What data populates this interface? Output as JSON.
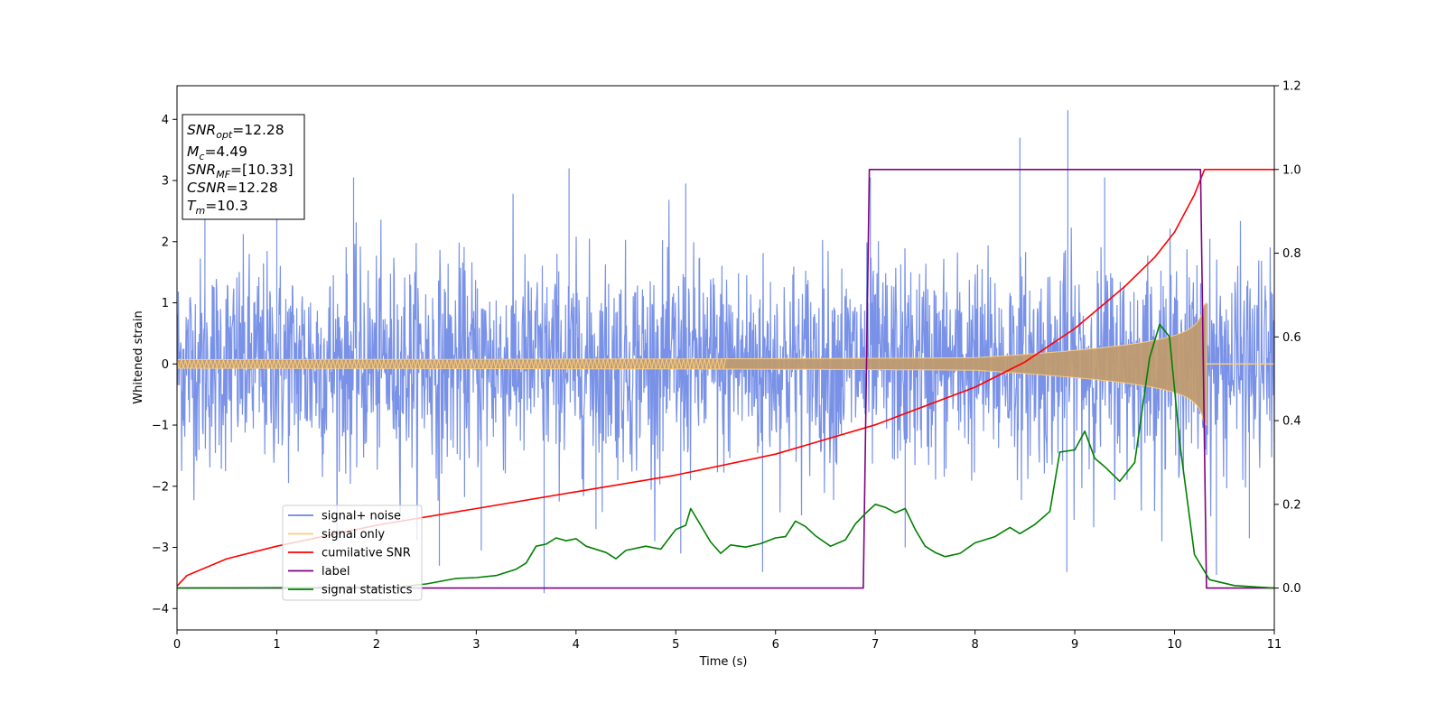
{
  "chart_data": {
    "type": "line",
    "xlabel": "Time (s)",
    "ylabel": "Whitened strain",
    "xlim": [
      0,
      11
    ],
    "ylim": [
      -4.35,
      4.55
    ],
    "y2lim": [
      -0.1,
      1.2
    ],
    "xticks": [
      "0",
      "1",
      "2",
      "3",
      "4",
      "5",
      "6",
      "7",
      "8",
      "9",
      "10",
      "11"
    ],
    "yticks": [
      "−4",
      "−3",
      "−2",
      "−1",
      "0",
      "1",
      "2",
      "3",
      "4"
    ],
    "y2ticks": [
      "0.0",
      "0.2",
      "0.4",
      "0.6",
      "0.8",
      "1.0",
      "1.2"
    ],
    "legend_position": "lower-left",
    "grid": false,
    "textbox": {
      "lines": [
        {
          "sym": "SNR",
          "sub": "opt",
          "rest": "=12.28"
        },
        {
          "sym": "M",
          "sub": "c",
          "rest": "=4.49"
        },
        {
          "sym": "SNR",
          "sub": "MF",
          "rest": "=[10.33]"
        },
        {
          "sym": "CSNR",
          "sub": "",
          "rest": "=12.28"
        },
        {
          "sym": "T",
          "sub": "m",
          "rest": "=10.3"
        }
      ]
    },
    "series": [
      {
        "name": "signal+ noise",
        "axis": "left",
        "color": "#6a86e6",
        "style": "dense noise",
        "envelope_std": 0.85,
        "spikes": [
          [
            0.28,
            3.1
          ],
          [
            1.0,
            2.6
          ],
          [
            1.77,
            3.05
          ],
          [
            2.63,
            -3.3
          ],
          [
            3.05,
            -3.05
          ],
          [
            3.68,
            -3.75
          ],
          [
            3.93,
            3.2
          ],
          [
            4.2,
            -2.7
          ],
          [
            5.05,
            -3.1
          ],
          [
            5.1,
            2.95
          ],
          [
            5.87,
            -3.4
          ],
          [
            6.95,
            3.05
          ],
          [
            7.3,
            -3.0
          ],
          [
            8.45,
            3.7
          ],
          [
            8.93,
            4.15
          ],
          [
            8.92,
            -3.4
          ],
          [
            9.3,
            3.05
          ],
          [
            10.42,
            -3.45
          ],
          [
            10.75,
            -2.85
          ]
        ]
      },
      {
        "name": "signal only",
        "axis": "left",
        "color": "#f7cb7f",
        "style": "chirp",
        "amplitude_start": 0.07,
        "amplitude_end": 1.0,
        "merger_time": 10.32
      },
      {
        "name": "cumilative SNR",
        "axis": "right",
        "color": "#ff0000",
        "points": [
          [
            0,
            0.005
          ],
          [
            0.1,
            0.03
          ],
          [
            0.5,
            0.07
          ],
          [
            1,
            0.1
          ],
          [
            2,
            0.15
          ],
          [
            3,
            0.19
          ],
          [
            4,
            0.23
          ],
          [
            5,
            0.27
          ],
          [
            6,
            0.32
          ],
          [
            7,
            0.39
          ],
          [
            8,
            0.48
          ],
          [
            8.5,
            0.54
          ],
          [
            9,
            0.62
          ],
          [
            9.5,
            0.72
          ],
          [
            9.8,
            0.79
          ],
          [
            10,
            0.85
          ],
          [
            10.2,
            0.94
          ],
          [
            10.3,
            1.0
          ],
          [
            11,
            1.0
          ]
        ]
      },
      {
        "name": "label",
        "axis": "right",
        "color": "#800080",
        "points": [
          [
            0,
            0
          ],
          [
            6.88,
            0
          ],
          [
            6.94,
            1.0
          ],
          [
            10.26,
            1.0
          ],
          [
            10.32,
            0
          ],
          [
            11,
            0
          ]
        ]
      },
      {
        "name": "signal statistics",
        "axis": "right",
        "color": "#008000",
        "points": [
          [
            0,
            0
          ],
          [
            2.2,
            0.002
          ],
          [
            2.5,
            0.01
          ],
          [
            2.8,
            0.023
          ],
          [
            3.0,
            0.025
          ],
          [
            3.2,
            0.03
          ],
          [
            3.4,
            0.045
          ],
          [
            3.5,
            0.06
          ],
          [
            3.6,
            0.1
          ],
          [
            3.7,
            0.105
          ],
          [
            3.8,
            0.12
          ],
          [
            3.9,
            0.113
          ],
          [
            4.0,
            0.118
          ],
          [
            4.1,
            0.1
          ],
          [
            4.3,
            0.085
          ],
          [
            4.4,
            0.07
          ],
          [
            4.5,
            0.09
          ],
          [
            4.7,
            0.1
          ],
          [
            4.85,
            0.093
          ],
          [
            5.0,
            0.14
          ],
          [
            5.1,
            0.15
          ],
          [
            5.15,
            0.19
          ],
          [
            5.25,
            0.15
          ],
          [
            5.35,
            0.11
          ],
          [
            5.45,
            0.083
          ],
          [
            5.55,
            0.103
          ],
          [
            5.7,
            0.098
          ],
          [
            5.85,
            0.106
          ],
          [
            6.0,
            0.12
          ],
          [
            6.1,
            0.123
          ],
          [
            6.2,
            0.16
          ],
          [
            6.3,
            0.147
          ],
          [
            6.4,
            0.125
          ],
          [
            6.55,
            0.1
          ],
          [
            6.7,
            0.115
          ],
          [
            6.8,
            0.153
          ],
          [
            6.9,
            0.178
          ],
          [
            7.0,
            0.2
          ],
          [
            7.1,
            0.193
          ],
          [
            7.2,
            0.18
          ],
          [
            7.3,
            0.19
          ],
          [
            7.4,
            0.14
          ],
          [
            7.5,
            0.1
          ],
          [
            7.6,
            0.085
          ],
          [
            7.7,
            0.075
          ],
          [
            7.85,
            0.083
          ],
          [
            8.0,
            0.108
          ],
          [
            8.2,
            0.123
          ],
          [
            8.35,
            0.145
          ],
          [
            8.45,
            0.13
          ],
          [
            8.6,
            0.152
          ],
          [
            8.75,
            0.183
          ],
          [
            8.85,
            0.325
          ],
          [
            9.0,
            0.33
          ],
          [
            9.1,
            0.375
          ],
          [
            9.2,
            0.31
          ],
          [
            9.3,
            0.29
          ],
          [
            9.45,
            0.255
          ],
          [
            9.6,
            0.3
          ],
          [
            9.75,
            0.55
          ],
          [
            9.85,
            0.63
          ],
          [
            9.95,
            0.6
          ],
          [
            10.05,
            0.35
          ],
          [
            10.2,
            0.08
          ],
          [
            10.35,
            0.02
          ],
          [
            10.6,
            0.006
          ],
          [
            11,
            0
          ]
        ]
      }
    ]
  }
}
